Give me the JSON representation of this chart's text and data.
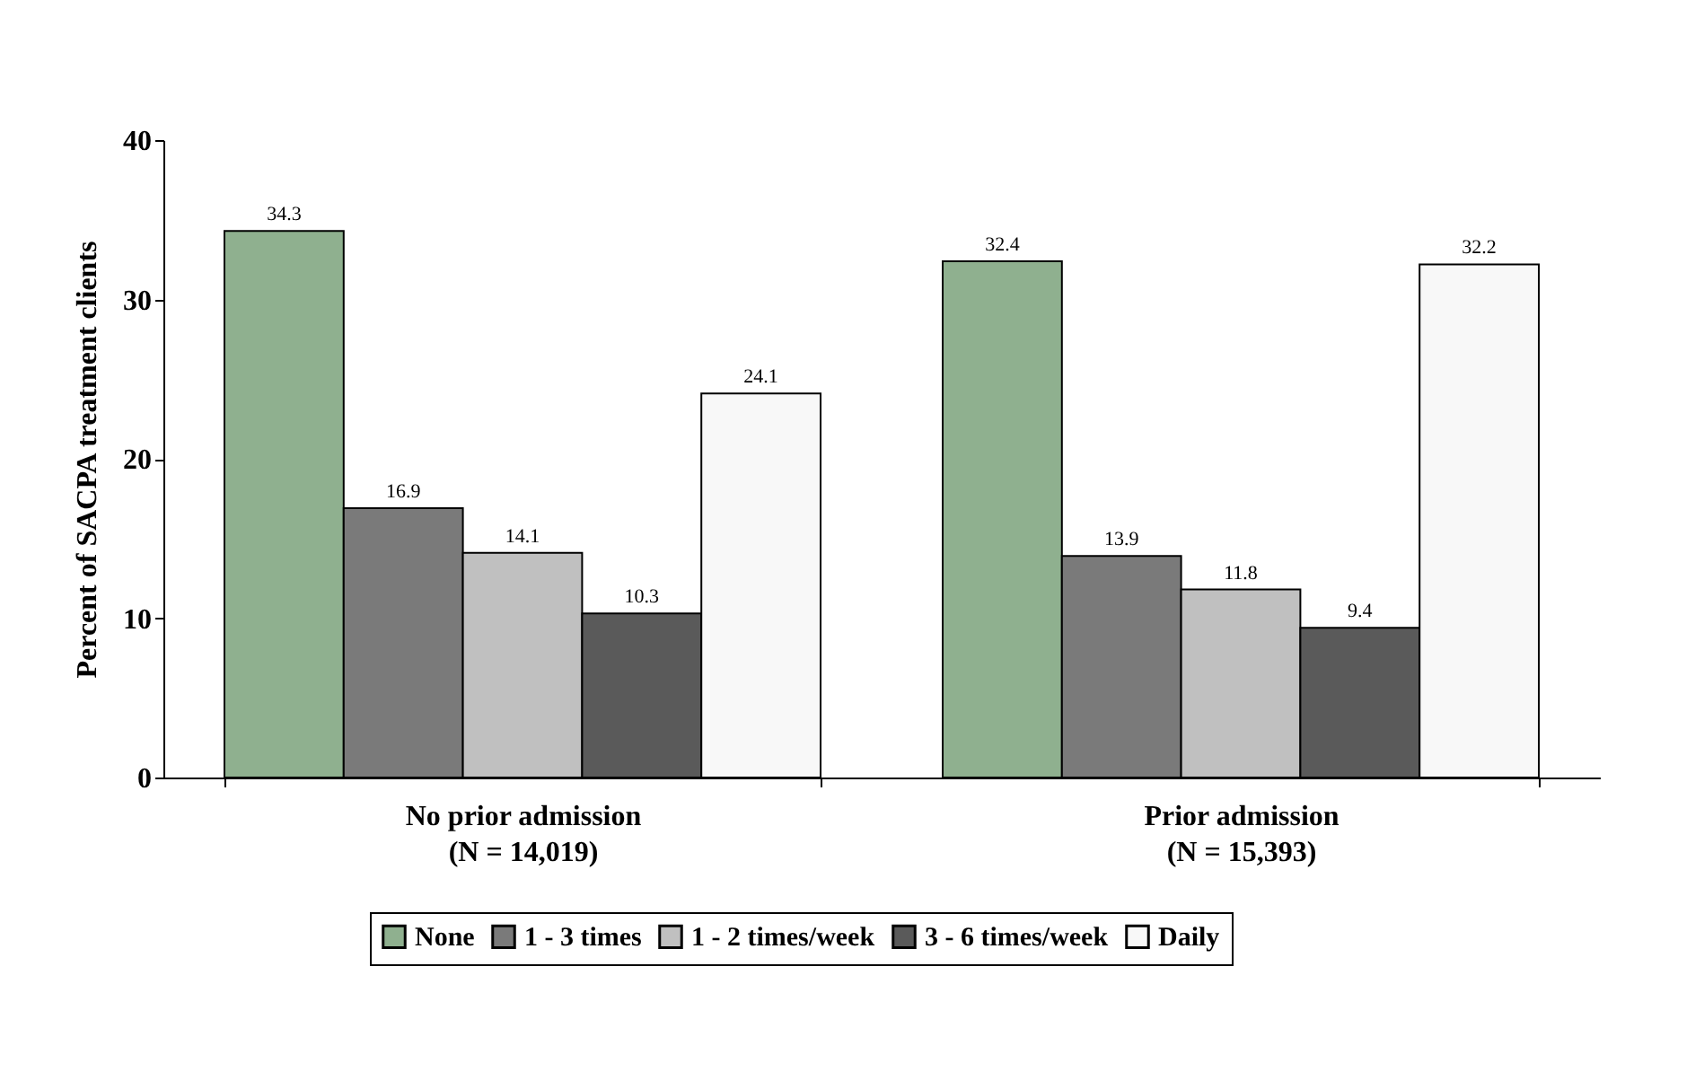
{
  "chart_data": {
    "type": "bar",
    "ylabel": "Percent of SACPA treatment clients",
    "categories": [
      "No prior admission\n(N = 14,019)",
      "Prior admission\n(N = 15,393)"
    ],
    "series": [
      {
        "name": "None",
        "color": "#8fb08f",
        "values": [
          34.3,
          32.4
        ]
      },
      {
        "name": "1 - 3 times",
        "color": "#7a7a7a",
        "values": [
          16.9,
          13.9
        ]
      },
      {
        "name": "1 - 2 times/week",
        "color": "#c0c0c0",
        "values": [
          14.1,
          11.8
        ]
      },
      {
        "name": "3 - 6 times/week",
        "color": "#5a5a5a",
        "values": [
          10.3,
          9.4
        ]
      },
      {
        "name": "Daily",
        "color": "#f8f8f8",
        "values": [
          24.1,
          32.2
        ]
      }
    ],
    "ylim": [
      0,
      40
    ],
    "yticks": [
      0,
      10,
      20,
      30,
      40
    ],
    "grid": false,
    "legend": "bottom",
    "data_labels": true
  }
}
